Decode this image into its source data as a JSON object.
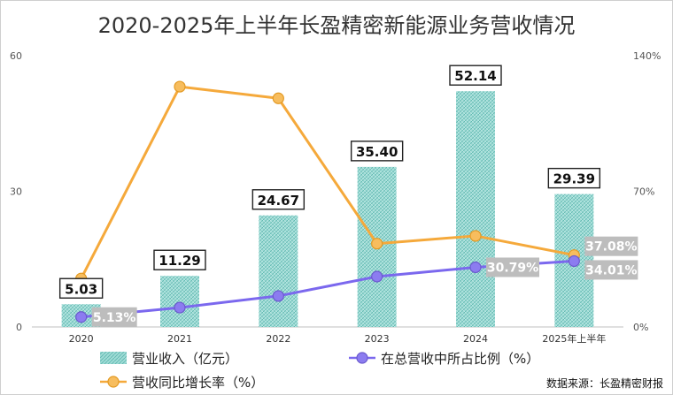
{
  "chart_data": {
    "type": "bar",
    "title": "2020-2025年上半年长盈精密新能源业务营收情况",
    "categories": [
      "2020",
      "2021",
      "2022",
      "2023",
      "2024",
      "2025年上半年"
    ],
    "y_left": {
      "ticks": [
        0,
        30,
        60
      ],
      "range": [
        0,
        60
      ]
    },
    "y_right": {
      "ticks": [
        "0%",
        "70%",
        "140%"
      ],
      "range": [
        0,
        140
      ]
    },
    "series": [
      {
        "name": "营业收入（亿元）",
        "type": "bar",
        "axis": "left",
        "color": "#7ecdc6",
        "values": [
          5.03,
          11.29,
          24.67,
          35.4,
          52.14,
          29.39
        ],
        "labels": [
          "5.03",
          "11.29",
          "24.67",
          "35.40",
          "52.14",
          "29.39"
        ]
      },
      {
        "name": "营收同比增长率（%）",
        "type": "line",
        "axis": "right",
        "color": "#f5a93b",
        "values": [
          25,
          124,
          118,
          43,
          47,
          37.08
        ],
        "labels": [
          "",
          "",
          "",
          "",
          "",
          "37.08%"
        ]
      },
      {
        "name": "在总营收中所占比例（%）",
        "type": "line",
        "axis": "right",
        "color": "#7b68ee",
        "values": [
          5.13,
          10,
          16,
          26,
          30.79,
          34.01
        ],
        "labels": [
          "5.13%",
          "",
          "",
          "",
          "30.79%",
          "34.01%"
        ]
      }
    ],
    "legend": {
      "placement": "bottom",
      "items": [
        {
          "label": "营业收入（亿元）",
          "series": 0
        },
        {
          "label": "在总营收中所占比例（%）",
          "series": 2
        },
        {
          "label": "营收同比增长率（%）",
          "series": 1
        }
      ]
    },
    "source": "数据来源：长盈精密财报"
  }
}
